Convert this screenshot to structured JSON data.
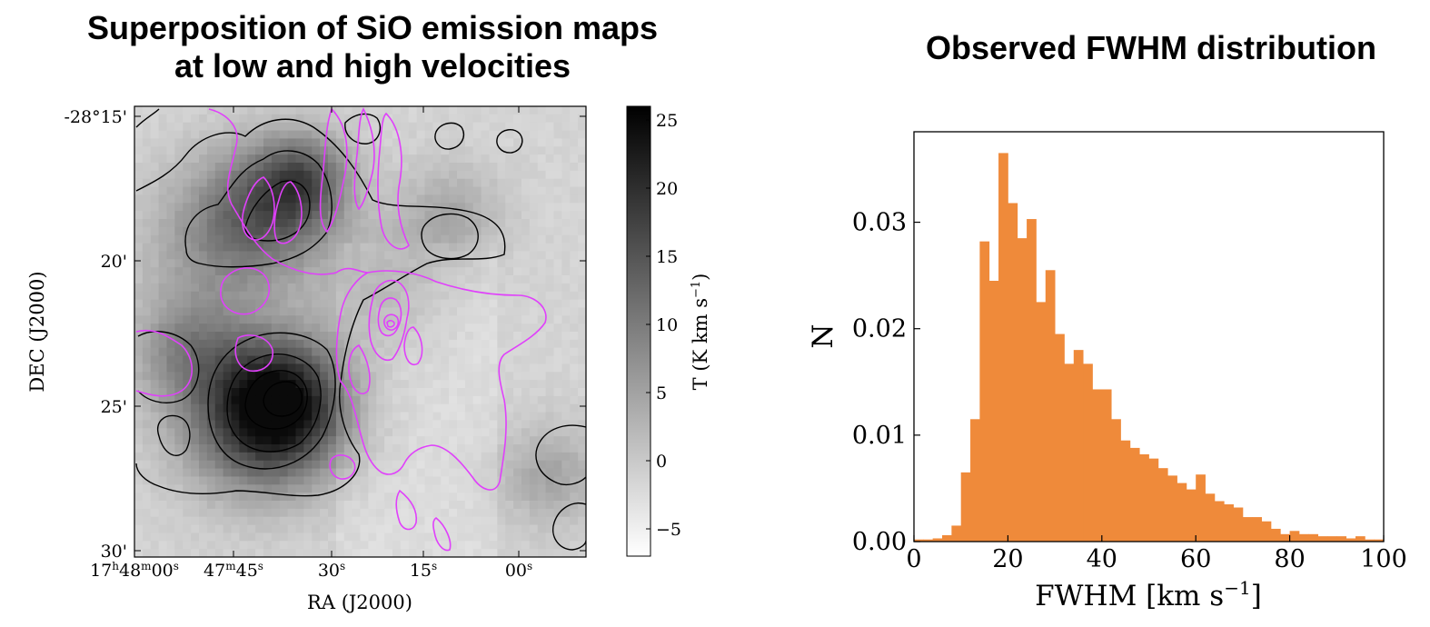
{
  "left_panel": {
    "title_line1": "Superposition of SiO emission maps",
    "title_line2": "at low and high velocities"
  },
  "right_panel": {
    "title": "Observed FWHM distribution"
  },
  "chart_data": [
    {
      "type": "heatmap",
      "title": "Superposition of SiO emission maps at low and high velocities",
      "xlabel": "RA (J2000)",
      "ylabel": "DEC (J2000)",
      "x_tick_labels": [
        {
          "h": "17",
          "hs": "h",
          "m": "48",
          "ms": "m",
          "s": "00",
          "ss": "s"
        },
        {
          "m": "47",
          "ms": "m",
          "s": "45",
          "ss": "s"
        },
        {
          "s": "30",
          "ss": "s"
        },
        {
          "s": "15",
          "ss": "s"
        },
        {
          "s": "00",
          "ss": "s"
        }
      ],
      "y_tick_labels": [
        "-28°15'",
        "20'",
        "25'",
        "30'"
      ],
      "colorbar": {
        "label": "T (K km s",
        "label_exp": "−1",
        "label_end": ")",
        "ticks": [
          "25",
          "20",
          "15",
          "10",
          "5",
          "0",
          "−5"
        ],
        "tick_values": [
          25,
          20,
          15,
          10,
          5,
          0,
          -5
        ],
        "range": [
          -7,
          26
        ]
      },
      "contour_colors": {
        "low_velocity": "#000000",
        "high_velocity": "#e040fb"
      }
    },
    {
      "type": "bar",
      "title": "Observed FWHM distribution",
      "xlabel": "FWHM [km s",
      "xlabel_exp": "−1",
      "xlabel_end": "]",
      "ylabel": "N",
      "xlim": [
        0,
        100
      ],
      "ylim": [
        0,
        0.0385
      ],
      "x_ticks": [
        0,
        20,
        40,
        60,
        80,
        100
      ],
      "x_tick_labels": [
        "0",
        "20",
        "40",
        "60",
        "80",
        "100"
      ],
      "y_ticks": [
        0,
        0.01,
        0.02,
        0.03
      ],
      "y_tick_labels": [
        "0.00",
        "0.01",
        "0.02",
        "0.03"
      ],
      "bar_color": "#ef8a3a",
      "bin_width": 2,
      "bin_start": 0,
      "values": [
        0.0002,
        0.0002,
        0.0003,
        0.0006,
        0.0015,
        0.0065,
        0.0115,
        0.0282,
        0.0245,
        0.0365,
        0.0318,
        0.0285,
        0.0303,
        0.0225,
        0.0255,
        0.0195,
        0.0167,
        0.018,
        0.0167,
        0.0143,
        0.0143,
        0.0115,
        0.0095,
        0.0088,
        0.0082,
        0.0078,
        0.0069,
        0.0062,
        0.0055,
        0.0049,
        0.0063,
        0.0045,
        0.0038,
        0.0035,
        0.0032,
        0.0023,
        0.0023,
        0.0019,
        0.0012,
        0.0007,
        0.001,
        0.0007,
        0.0007,
        0.0005,
        0.0005,
        0.0005,
        0.0003,
        0.0005,
        0.0002,
        0.0002
      ]
    }
  ]
}
